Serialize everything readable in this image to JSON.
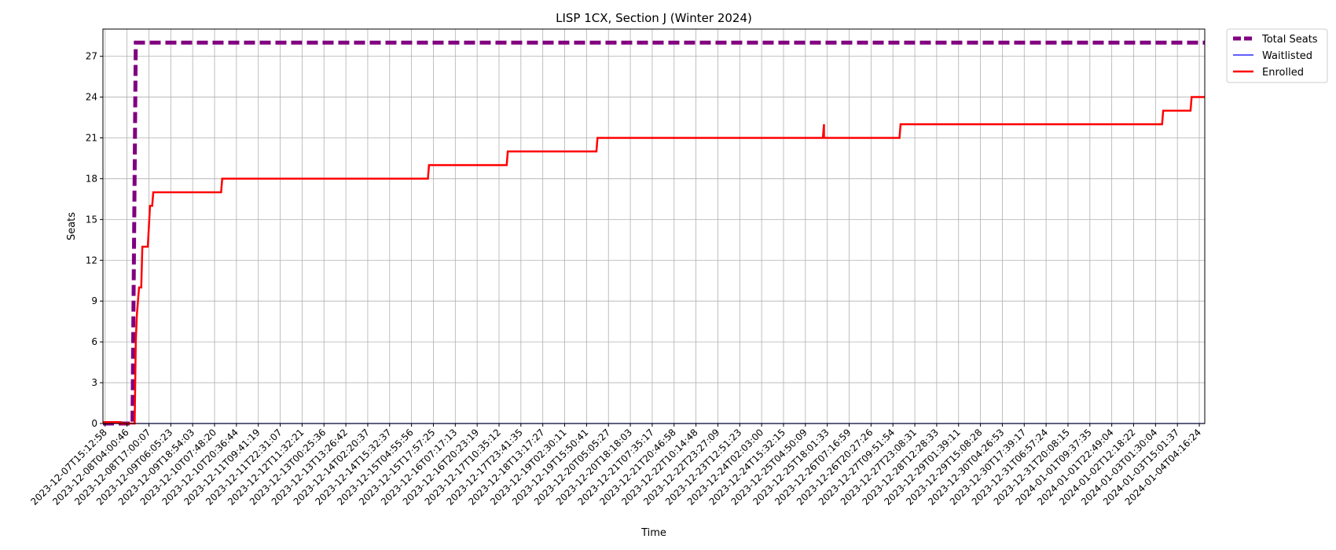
{
  "chart_data": {
    "type": "line",
    "title": "LISP 1CX, Section J (Winter 2024)",
    "xlabel": "Time",
    "ylabel": "Seats",
    "ylim": [
      0,
      29
    ],
    "yticks": [
      0,
      3,
      6,
      9,
      12,
      15,
      18,
      21,
      24,
      27
    ],
    "grid": true,
    "legend_position": "outside-top-right",
    "x_ticks": [
      "2023-12-07T15:12:58",
      "2023-12-08T04:00:46",
      "2023-12-08T17:00:07",
      "2023-12-09T06:05:23",
      "2023-12-09T18:54:03",
      "2023-12-10T07:48:20",
      "2023-12-10T20:36:44",
      "2023-12-11T09:41:19",
      "2023-12-11T22:31:07",
      "2023-12-12T11:32:21",
      "2023-12-13T00:25:36",
      "2023-12-13T13:26:42",
      "2023-12-14T02:20:37",
      "2023-12-14T15:32:37",
      "2023-12-15T04:55:56",
      "2023-12-15T17:57:25",
      "2023-12-16T07:17:13",
      "2023-12-16T20:23:19",
      "2023-12-17T10:35:12",
      "2023-12-17T23:41:35",
      "2023-12-18T13:17:27",
      "2023-12-19T02:30:11",
      "2023-12-19T15:50:41",
      "2023-12-20T05:05:27",
      "2023-12-20T18:18:03",
      "2023-12-21T07:35:17",
      "2023-12-21T20:46:58",
      "2023-12-22T10:14:48",
      "2023-12-22T23:27:09",
      "2023-12-23T12:51:23",
      "2023-12-24T02:03:00",
      "2023-12-24T15:32:15",
      "2023-12-25T04:50:09",
      "2023-12-25T18:01:33",
      "2023-12-26T07:16:59",
      "2023-12-26T20:27:26",
      "2023-12-27T09:51:54",
      "2023-12-27T23:08:31",
      "2023-12-28T12:28:33",
      "2023-12-29T01:39:11",
      "2023-12-29T15:08:28",
      "2023-12-30T04:26:53",
      "2023-12-30T17:39:17",
      "2023-12-31T06:57:24",
      "2023-12-31T20:08:15",
      "2024-01-01T09:37:35",
      "2024-01-01T22:49:04",
      "2024-01-02T12:18:22",
      "2024-01-03T01:30:04",
      "2024-01-03T15:01:37",
      "2024-01-04T04:16:24"
    ],
    "x_range_ticks": [
      -0.1,
      50.25
    ],
    "series": [
      {
        "name": "Total Seats",
        "color": "#800080",
        "style": "dashed-thick",
        "points": [
          [
            -0.1,
            0
          ],
          [
            1.25,
            0
          ],
          [
            1.4,
            28
          ],
          [
            50.25,
            28
          ]
        ]
      },
      {
        "name": "Waitlisted",
        "color": "#0000ff",
        "style": "thin",
        "points": [
          [
            -0.1,
            0
          ],
          [
            50.25,
            0
          ]
        ]
      },
      {
        "name": "Enrolled",
        "color": "#ff0000",
        "style": "solid",
        "points": [
          [
            -0.1,
            0.1
          ],
          [
            0.7,
            0.1
          ],
          [
            0.7,
            0
          ],
          [
            1.35,
            0
          ],
          [
            1.35,
            0.1
          ],
          [
            1.4,
            6
          ],
          [
            1.45,
            8
          ],
          [
            1.55,
            10
          ],
          [
            1.65,
            10
          ],
          [
            1.7,
            13
          ],
          [
            1.95,
            13
          ],
          [
            2.05,
            16
          ],
          [
            2.15,
            16
          ],
          [
            2.2,
            17
          ],
          [
            5.3,
            17
          ],
          [
            5.35,
            18
          ],
          [
            14.75,
            18
          ],
          [
            14.8,
            19
          ],
          [
            18.35,
            19
          ],
          [
            18.4,
            20
          ],
          [
            22.45,
            20
          ],
          [
            22.5,
            21
          ],
          [
            32.8,
            21
          ],
          [
            32.85,
            22
          ],
          [
            32.85,
            21
          ],
          [
            36.3,
            21
          ],
          [
            36.35,
            22
          ],
          [
            48.3,
            22
          ],
          [
            48.35,
            23
          ],
          [
            49.6,
            23
          ],
          [
            49.65,
            24
          ],
          [
            50.25,
            24
          ]
        ]
      }
    ]
  }
}
